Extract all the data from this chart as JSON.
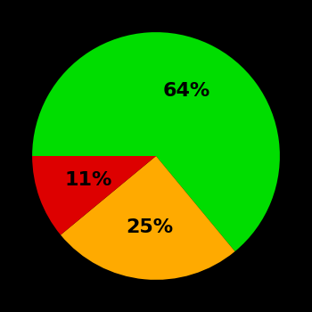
{
  "slices": [
    64,
    25,
    11
  ],
  "colors": [
    "#00dd00",
    "#ffaa00",
    "#dd0000"
  ],
  "labels": [
    "64%",
    "25%",
    "11%"
  ],
  "background_color": "#000000",
  "text_color": "#000000",
  "startangle": 180,
  "counterclock": false,
  "label_r": 0.58,
  "figsize": [
    3.5,
    3.5
  ],
  "dpi": 100
}
